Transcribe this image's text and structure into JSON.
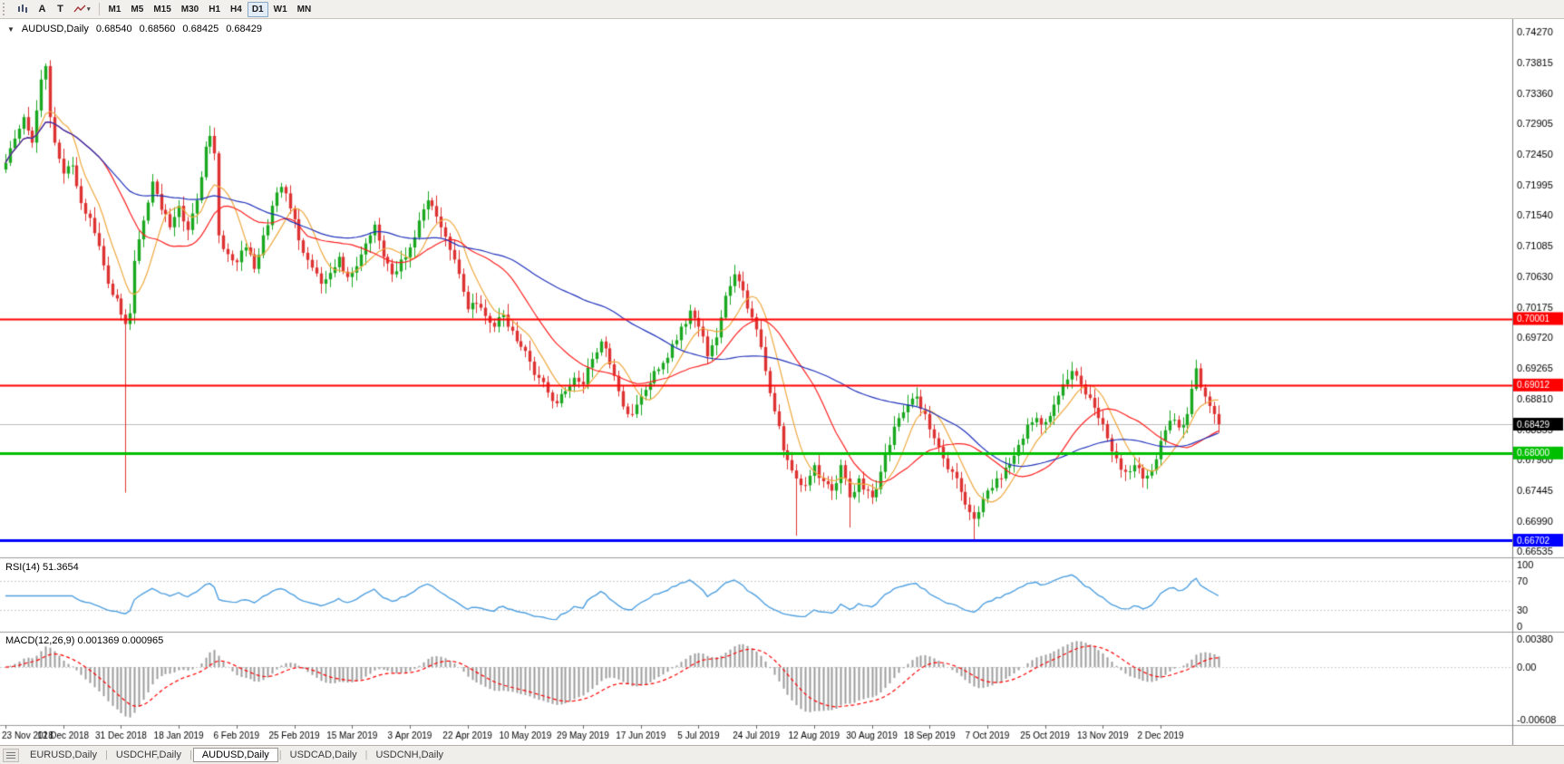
{
  "window": {
    "bg": "#FFFFFF"
  },
  "toolbar": {
    "letter_buttons": [
      "A",
      "T"
    ],
    "timeframes": [
      "M1",
      "M5",
      "M15",
      "M30",
      "H1",
      "H4",
      "D1",
      "W1",
      "MN"
    ],
    "active_timeframe": "D1"
  },
  "chart_header": {
    "expander": "▼",
    "symbol": "AUDUSD,Daily",
    "open": "0.68540",
    "high": "0.68560",
    "low": "0.68425",
    "close": "0.68429"
  },
  "rsi_panel": {
    "title": "RSI(14) 51.3654",
    "axis_labels": [
      "100",
      "70",
      "30",
      "0"
    ],
    "levels": [
      70,
      30
    ],
    "color": "#4FA0E0"
  },
  "macd_panel": {
    "title": "MACD(12,26,9) 0.001369 0.000965",
    "axis_labels": [
      "0.00380",
      "0.00",
      "-0.00608"
    ],
    "histogram_color": "#9C9C9C",
    "signal_color": "#FF0000"
  },
  "tabbar": {
    "tabs": [
      {
        "label": "EURUSD,Daily",
        "active": false
      },
      {
        "label": "USDCHF,Daily",
        "active": false
      },
      {
        "label": "AUDUSD,Daily",
        "active": true
      },
      {
        "label": "USDCAD,Daily",
        "active": false
      },
      {
        "label": "USDCNH,Daily",
        "active": false
      }
    ]
  },
  "chart_data": {
    "type": "candlestick",
    "symbol": "AUDUSD",
    "timeframe": "Daily",
    "current_price": 0.68429,
    "bar_count": 274,
    "bars_per_tick": 13,
    "x_tick_labels": [
      "23 Nov 2018",
      "12 Dec 2018",
      "31 Dec 2018",
      "18 Jan 2019",
      "6 Feb 2019",
      "25 Feb 2019",
      "15 Mar 2019",
      "3 Apr 2019",
      "22 Apr 2019",
      "10 May 2019",
      "29 May 2019",
      "17 Jun 2019",
      "5 Jul 2019",
      "24 Jul 2019",
      "12 Aug 2019",
      "30 Aug 2019",
      "18 Sep 2019",
      "7 Oct 2019",
      "25 Oct 2019",
      "13 Nov 2019",
      "2 Dec 2019"
    ],
    "price_axis_labels": [
      "0.74270",
      "0.73815",
      "0.73360",
      "0.72905",
      "0.72450",
      "0.71995",
      "0.71540",
      "0.71085",
      "0.70630",
      "0.70175",
      "0.69720",
      "0.69265",
      "0.68810",
      "0.68355",
      "0.67900",
      "0.67445",
      "0.66990",
      "0.66535"
    ],
    "price_range": {
      "top": 0.7446,
      "bottom": 0.6646
    },
    "horizontal_lines": [
      {
        "price": 0.70001,
        "label": "0.70001",
        "color": "#FF0000",
        "width": 2
      },
      {
        "price": 0.69012,
        "label": "0.69012",
        "color": "#FF0000",
        "width": 2
      },
      {
        "price": 0.68,
        "label": "0.68000",
        "color": "#00BE00",
        "width": 3
      },
      {
        "price": 0.66702,
        "label": "0.66702",
        "color": "#0000FF",
        "width": 3
      }
    ],
    "bid_line": {
      "price": 0.68429,
      "label": "0.68429",
      "color": "#BDBDBD",
      "badge_color": "#000000"
    },
    "candle_colors": {
      "up": "#19A81F",
      "down": "#DE3232"
    },
    "moving_averages": [
      {
        "period": 8,
        "color": "#EFA93F"
      },
      {
        "period": 21,
        "color": "#FF2020"
      },
      {
        "period": 55,
        "color": "#2233BB"
      }
    ],
    "rsi": {
      "period": 14,
      "value": 51.3654
    },
    "macd": {
      "fast": 12,
      "slow": 26,
      "signal": 9,
      "macd_value": 0.001369,
      "signal_value": 0.000965
    },
    "price_path": [
      [
        0,
        0.7232
      ],
      [
        2,
        0.7268
      ],
      [
        4,
        0.73
      ],
      [
        6,
        0.7262
      ],
      [
        8,
        0.7356
      ],
      [
        9,
        0.7376
      ],
      [
        10,
        0.73
      ],
      [
        11,
        0.7262
      ],
      [
        13,
        0.7216
      ],
      [
        15,
        0.7228
      ],
      [
        17,
        0.7172
      ],
      [
        19,
        0.715
      ],
      [
        21,
        0.7108
      ],
      [
        23,
        0.7052
      ],
      [
        25,
        0.703
      ],
      [
        26,
        0.7006
      ],
      [
        27,
        0.6992
      ],
      [
        28,
        0.7008
      ],
      [
        29,
        0.7086
      ],
      [
        31,
        0.7146
      ],
      [
        33,
        0.7204
      ],
      [
        35,
        0.7162
      ],
      [
        37,
        0.7136
      ],
      [
        39,
        0.7168
      ],
      [
        41,
        0.7132
      ],
      [
        43,
        0.7176
      ],
      [
        45,
        0.7256
      ],
      [
        46,
        0.7272
      ],
      [
        47,
        0.7246
      ],
      [
        48,
        0.7124
      ],
      [
        50,
        0.7096
      ],
      [
        52,
        0.7084
      ],
      [
        54,
        0.7106
      ],
      [
        56,
        0.7074
      ],
      [
        58,
        0.7124
      ],
      [
        60,
        0.7168
      ],
      [
        62,
        0.7196
      ],
      [
        64,
        0.7164
      ],
      [
        65,
        0.7148
      ],
      [
        67,
        0.7098
      ],
      [
        69,
        0.7076
      ],
      [
        71,
        0.7052
      ],
      [
        73,
        0.7068
      ],
      [
        75,
        0.7092
      ],
      [
        77,
        0.7062
      ],
      [
        79,
        0.7078
      ],
      [
        81,
        0.7112
      ],
      [
        83,
        0.714
      ],
      [
        85,
        0.7092
      ],
      [
        87,
        0.7066
      ],
      [
        89,
        0.7088
      ],
      [
        91,
        0.7106
      ],
      [
        93,
        0.7146
      ],
      [
        95,
        0.7176
      ],
      [
        97,
        0.7152
      ],
      [
        99,
        0.7122
      ],
      [
        101,
        0.7088
      ],
      [
        103,
        0.704
      ],
      [
        104,
        0.7014
      ],
      [
        106,
        0.7022
      ],
      [
        108,
        0.7004
      ],
      [
        110,
        0.6988
      ],
      [
        112,
        0.7006
      ],
      [
        114,
        0.6982
      ],
      [
        116,
        0.6958
      ],
      [
        118,
        0.6936
      ],
      [
        120,
        0.6912
      ],
      [
        122,
        0.689
      ],
      [
        124,
        0.6874
      ],
      [
        126,
        0.6892
      ],
      [
        128,
        0.6912
      ],
      [
        130,
        0.6902
      ],
      [
        132,
        0.694
      ],
      [
        134,
        0.6966
      ],
      [
        136,
        0.6932
      ],
      [
        138,
        0.6892
      ],
      [
        140,
        0.6858
      ],
      [
        142,
        0.6872
      ],
      [
        144,
        0.6894
      ],
      [
        146,
        0.6922
      ],
      [
        148,
        0.6934
      ],
      [
        150,
        0.6962
      ],
      [
        152,
        0.6988
      ],
      [
        154,
        0.7012
      ],
      [
        156,
        0.6988
      ],
      [
        158,
        0.6944
      ],
      [
        160,
        0.6972
      ],
      [
        162,
        0.7034
      ],
      [
        164,
        0.7066
      ],
      [
        166,
        0.7042
      ],
      [
        168,
        0.7002
      ],
      [
        169,
        0.6984
      ],
      [
        171,
        0.6922
      ],
      [
        173,
        0.6862
      ],
      [
        175,
        0.6804
      ],
      [
        177,
        0.6774
      ],
      [
        178,
        0.6762
      ],
      [
        180,
        0.6752
      ],
      [
        182,
        0.6782
      ],
      [
        184,
        0.6758
      ],
      [
        186,
        0.6744
      ],
      [
        188,
        0.6782
      ],
      [
        190,
        0.6734
      ],
      [
        192,
        0.6762
      ],
      [
        194,
        0.6744
      ],
      [
        195,
        0.6734
      ],
      [
        197,
        0.6772
      ],
      [
        199,
        0.6812
      ],
      [
        201,
        0.6852
      ],
      [
        203,
        0.6872
      ],
      [
        205,
        0.6884
      ],
      [
        207,
        0.6858
      ],
      [
        209,
        0.6822
      ],
      [
        211,
        0.6792
      ],
      [
        213,
        0.6772
      ],
      [
        215,
        0.6742
      ],
      [
        217,
        0.6712
      ],
      [
        218,
        0.6702
      ],
      [
        220,
        0.6732
      ],
      [
        222,
        0.6748
      ],
      [
        224,
        0.6762
      ],
      [
        226,
        0.6784
      ],
      [
        228,
        0.6812
      ],
      [
        230,
        0.6842
      ],
      [
        232,
        0.6852
      ],
      [
        234,
        0.6846
      ],
      [
        236,
        0.6872
      ],
      [
        238,
        0.6902
      ],
      [
        240,
        0.6922
      ],
      [
        242,
        0.6902
      ],
      [
        244,
        0.6882
      ],
      [
        246,
        0.6852
      ],
      [
        248,
        0.6822
      ],
      [
        250,
        0.6792
      ],
      [
        252,
        0.6772
      ],
      [
        254,
        0.6782
      ],
      [
        256,
        0.6762
      ],
      [
        258,
        0.6774
      ],
      [
        260,
        0.6818
      ],
      [
        262,
        0.6848
      ],
      [
        264,
        0.6838
      ],
      [
        266,
        0.6858
      ],
      [
        268,
        0.6926
      ],
      [
        270,
        0.6884
      ],
      [
        272,
        0.6858
      ],
      [
        273,
        0.68429
      ]
    ],
    "spikes": [
      {
        "i": 27,
        "low": 0.6741
      },
      {
        "i": 178,
        "low": 0.6677
      },
      {
        "i": 190,
        "low": 0.6689
      },
      {
        "i": 218,
        "low": 0.667
      },
      {
        "i": 268,
        "high": 0.6939
      }
    ]
  }
}
